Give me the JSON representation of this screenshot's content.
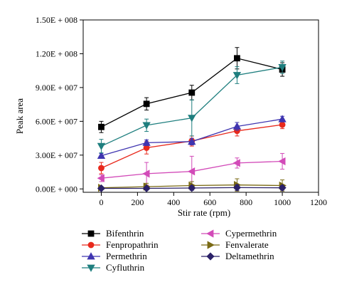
{
  "chart_data": {
    "type": "line",
    "title": "",
    "xlabel": "Stir rate (rpm)",
    "ylabel": "Peak area",
    "xlim": [
      -100,
      1200
    ],
    "ylim": [
      -3000000,
      150000000
    ],
    "x_ticks": [
      0,
      200,
      400,
      600,
      800,
      1000,
      1200
    ],
    "x_tick_labels": [
      "0",
      "200",
      "400",
      "600",
      "800",
      "1000",
      "1200"
    ],
    "y_ticks": [
      0,
      30000000,
      60000000,
      90000000,
      120000000,
      150000000
    ],
    "y_tick_labels": [
      "0.00E + 000",
      "3.00E + 007",
      "6.00E + 007",
      "9.00E + 007",
      "1.20E + 008",
      "1.50E + 008"
    ],
    "x": [
      0,
      250,
      500,
      750,
      1000
    ],
    "legend_position": "bottom, two columns",
    "series": [
      {
        "name": "Bifenthrin",
        "color": "#000000",
        "marker": "square",
        "values": [
          55000000,
          75500000,
          85500000,
          116000000,
          106000000
        ],
        "errors": [
          5000000,
          5500000,
          6500000,
          9500000,
          6000000
        ]
      },
      {
        "name": "Fenpropathrin",
        "color": "#e8291c",
        "marker": "circle",
        "values": [
          18500000,
          36500000,
          42500000,
          51500000,
          57000000
        ],
        "errors": [
          5000000,
          5500000,
          4500000,
          4500000,
          3500000
        ]
      },
      {
        "name": "Permethrin",
        "color": "#3f35b0",
        "marker": "triangle-up",
        "values": [
          29500000,
          41000000,
          42000000,
          55500000,
          62000000
        ],
        "errors": [
          2000000,
          2500000,
          3000000,
          3500000,
          2500000
        ]
      },
      {
        "name": "Cyfluthrin",
        "color": "#1f7f7f",
        "marker": "triangle-down",
        "values": [
          38000000,
          56500000,
          63000000,
          101000000,
          108000000
        ],
        "errors": [
          6000000,
          5500000,
          16000000,
          7500000,
          5500000
        ]
      },
      {
        "name": "Cypermethrin",
        "color": "#d24ab8",
        "marker": "triangle-left",
        "values": [
          9500000,
          13500000,
          15500000,
          23000000,
          24500000
        ],
        "errors": [
          3000000,
          10000000,
          13500000,
          4500000,
          7000000
        ]
      },
      {
        "name": "Fenvalerate",
        "color": "#7a6a14",
        "marker": "triangle-right",
        "values": [
          1000000,
          2000000,
          3000000,
          3500000,
          3000000
        ],
        "errors": [
          1000000,
          3000000,
          3500000,
          5500000,
          5000000
        ]
      },
      {
        "name": "Deltamethrin",
        "color": "#2b2168",
        "marker": "diamond",
        "values": [
          500000,
          500000,
          800000,
          1200000,
          1000000
        ],
        "errors": [
          1000000,
          1500000,
          2000000,
          2500000,
          2000000
        ]
      }
    ]
  }
}
